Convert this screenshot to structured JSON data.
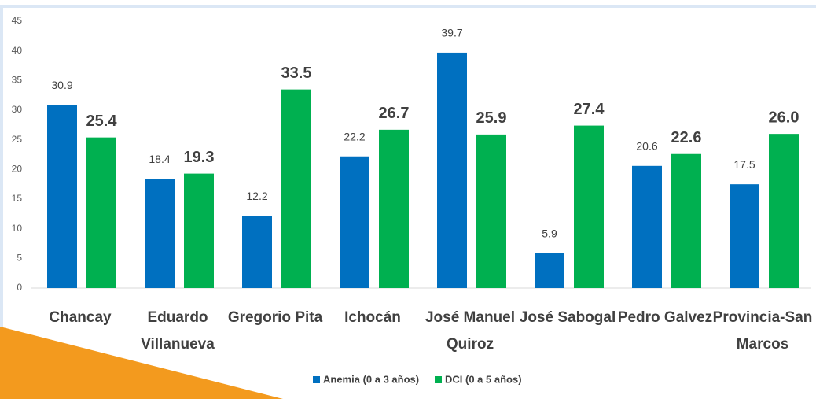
{
  "chart_data": {
    "type": "bar",
    "categories": [
      "Chancay",
      "Eduardo Villanueva",
      "Gregorio Pita",
      "Ichocán",
      "José Manuel Quiroz",
      "José Sabogal",
      "Pedro Galvez",
      "Provincia-San Marcos"
    ],
    "series": [
      {
        "name": "Anemia (0 a 3 años)",
        "color": "#0070c0",
        "values": [
          30.9,
          18.4,
          12.2,
          22.2,
          39.7,
          5.9,
          20.6,
          17.5
        ]
      },
      {
        "name": "DCI (0 a 5 años)",
        "color": "#00b050",
        "values": [
          25.4,
          19.3,
          33.5,
          26.7,
          25.9,
          27.4,
          22.6,
          26.0
        ],
        "value_labels": [
          "25.4",
          "19.3",
          "33.5",
          "26.7",
          "25.9",
          "27.4",
          "22.6",
          "26.0"
        ]
      }
    ],
    "ylim": [
      0,
      45
    ],
    "yticks": [
      0,
      5,
      10,
      15,
      20,
      25,
      30,
      35,
      40,
      45
    ],
    "grid": false,
    "legend": "bottom"
  }
}
